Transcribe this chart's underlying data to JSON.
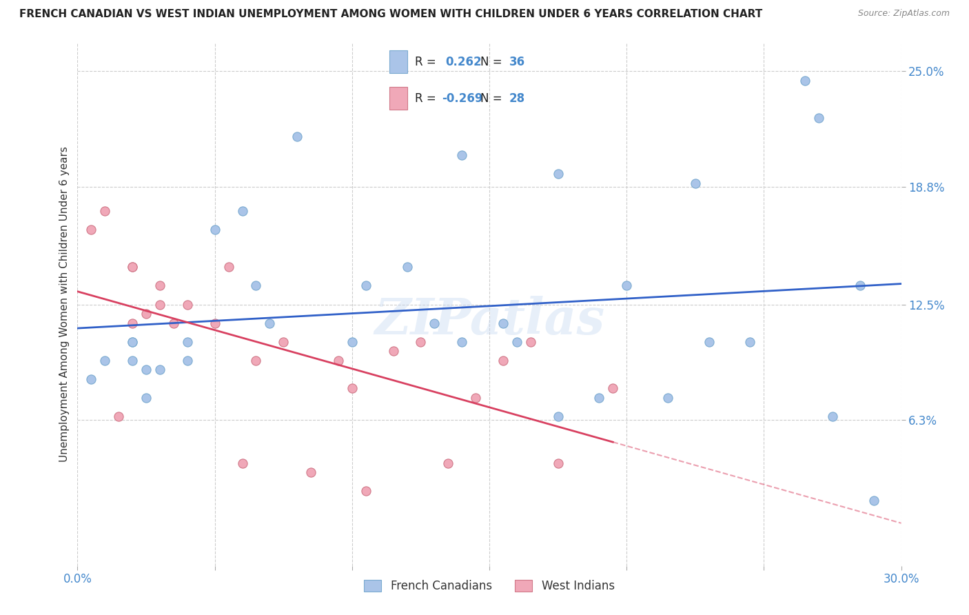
{
  "title": "FRENCH CANADIAN VS WEST INDIAN UNEMPLOYMENT AMONG WOMEN WITH CHILDREN UNDER 6 YEARS CORRELATION CHART",
  "source": "Source: ZipAtlas.com",
  "ylabel": "Unemployment Among Women with Children Under 6 years",
  "xlim": [
    0.0,
    0.3
  ],
  "ylim": [
    -0.015,
    0.265
  ],
  "xticks": [
    0.0,
    0.05,
    0.1,
    0.15,
    0.2,
    0.25,
    0.3
  ],
  "xticklabels": [
    "0.0%",
    "",
    "",
    "",
    "",
    "",
    "30.0%"
  ],
  "ytick_positions": [
    0.063,
    0.125,
    0.188,
    0.25
  ],
  "ytick_labels": [
    "6.3%",
    "12.5%",
    "18.8%",
    "25.0%"
  ],
  "french_canadian_x": [
    0.005,
    0.01,
    0.02,
    0.02,
    0.02,
    0.025,
    0.025,
    0.03,
    0.04,
    0.04,
    0.05,
    0.06,
    0.065,
    0.07,
    0.08,
    0.1,
    0.105,
    0.12,
    0.13,
    0.14,
    0.155,
    0.16,
    0.175,
    0.19,
    0.2,
    0.215,
    0.23,
    0.265,
    0.27,
    0.275,
    0.285,
    0.29,
    0.14,
    0.175,
    0.225,
    0.245
  ],
  "french_canadian_y": [
    0.085,
    0.095,
    0.095,
    0.105,
    0.105,
    0.075,
    0.09,
    0.09,
    0.095,
    0.105,
    0.165,
    0.175,
    0.135,
    0.115,
    0.215,
    0.105,
    0.135,
    0.145,
    0.115,
    0.205,
    0.115,
    0.105,
    0.195,
    0.075,
    0.135,
    0.075,
    0.105,
    0.245,
    0.225,
    0.065,
    0.135,
    0.02,
    0.105,
    0.065,
    0.19,
    0.105
  ],
  "west_indian_x": [
    0.005,
    0.01,
    0.015,
    0.02,
    0.02,
    0.02,
    0.025,
    0.03,
    0.03,
    0.035,
    0.04,
    0.05,
    0.055,
    0.06,
    0.065,
    0.075,
    0.085,
    0.095,
    0.1,
    0.105,
    0.115,
    0.125,
    0.135,
    0.145,
    0.155,
    0.165,
    0.175,
    0.195
  ],
  "west_indian_y": [
    0.165,
    0.175,
    0.065,
    0.145,
    0.145,
    0.115,
    0.12,
    0.125,
    0.135,
    0.115,
    0.125,
    0.115,
    0.145,
    0.04,
    0.095,
    0.105,
    0.035,
    0.095,
    0.08,
    0.025,
    0.1,
    0.105,
    0.04,
    0.075,
    0.095,
    0.105,
    0.04,
    0.08
  ],
  "fc_color": "#aac4e8",
  "fc_edge_color": "#7aaad0",
  "wi_color": "#f0a8b8",
  "wi_edge_color": "#d07888",
  "fc_R": 0.262,
  "fc_N": 36,
  "wi_R": -0.269,
  "wi_N": 28,
  "trend_fc_color": "#3060c8",
  "trend_wi_color": "#d84060",
  "watermark": "ZIPatlas",
  "marker_size": 90,
  "grid_color": "#cccccc",
  "title_color": "#222222",
  "axis_label_color": "#333333",
  "tick_label_color": "#4488cc",
  "legend_fc_label": "French Canadians",
  "legend_wi_label": "West Indians"
}
